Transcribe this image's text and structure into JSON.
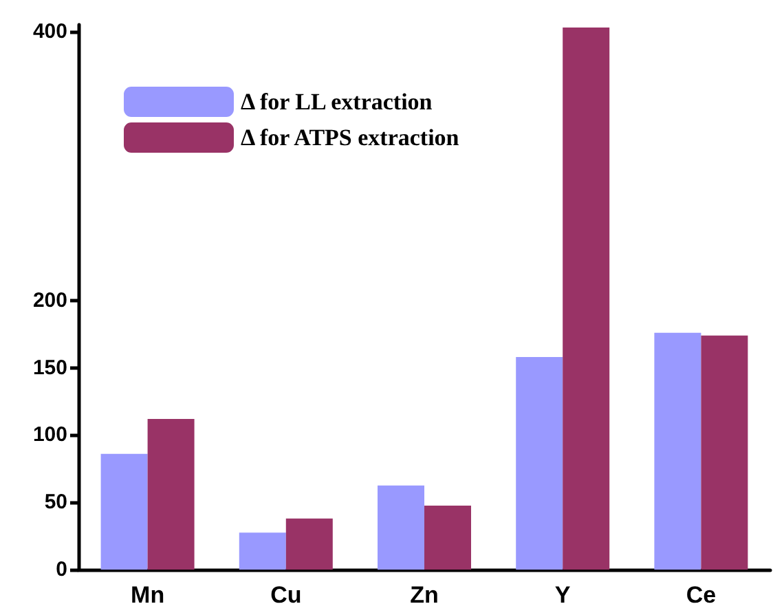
{
  "chart_data": {
    "type": "bar",
    "categories": [
      "Mn",
      "Cu",
      "Zn",
      "Y",
      "Ce"
    ],
    "series": [
      {
        "name": "Δ for LL extraction",
        "color": "#9999ff",
        "values": [
          86,
          27.5,
          62.5,
          158,
          176
        ]
      },
      {
        "name": "Δ for ATPS extraction",
        "color": "#993366",
        "values": [
          112,
          38,
          47.5,
          403,
          174
        ]
      }
    ],
    "ylim": [
      0,
      405
    ],
    "yticks": [
      0,
      50,
      100,
      150,
      200,
      400
    ],
    "grid": false,
    "legend": "top left"
  }
}
